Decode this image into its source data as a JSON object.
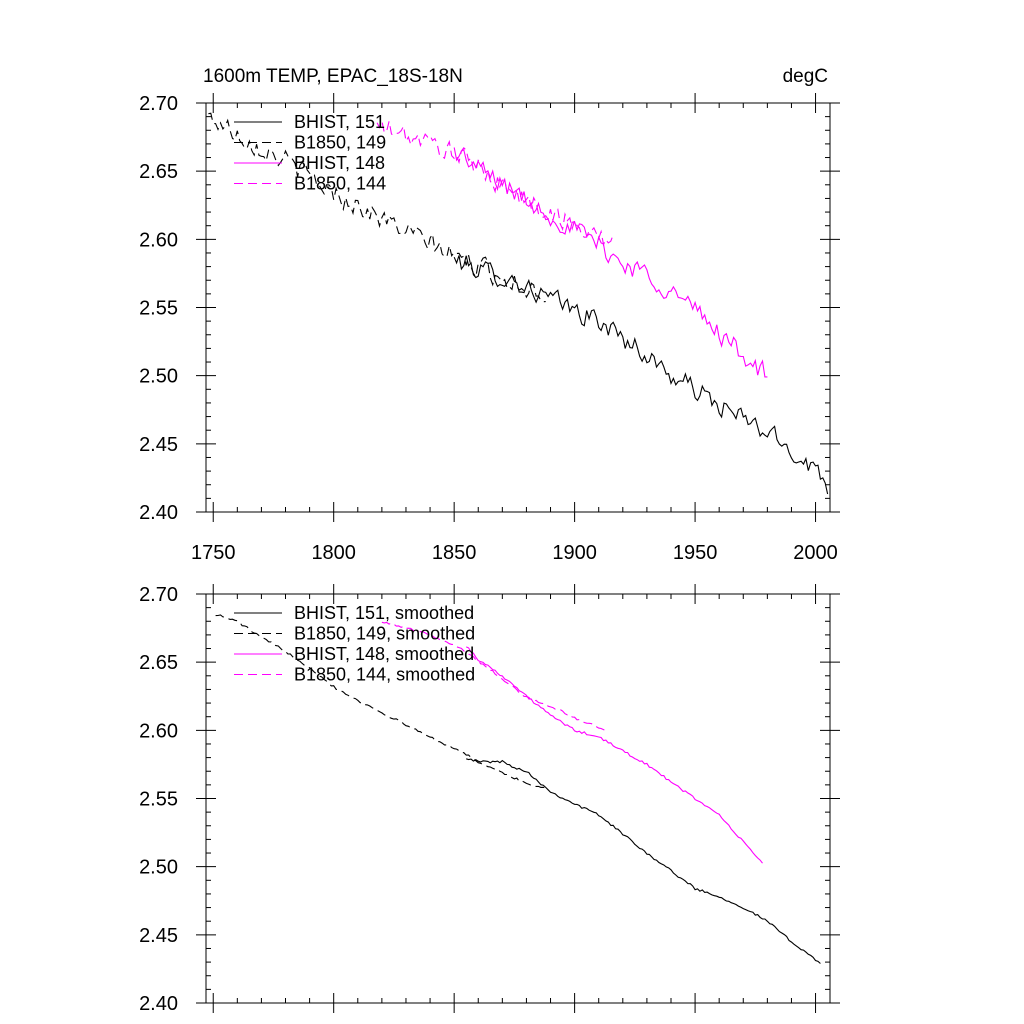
{
  "chart_data": [
    {
      "type": "line",
      "title": "1600m TEMP, EPAC_18S-18N",
      "units": "degC",
      "xlim": [
        1747,
        2006
      ],
      "ylim": [
        2.4,
        2.7
      ],
      "xticks": [
        1750,
        1800,
        1850,
        1900,
        1950,
        2000
      ],
      "yticks": [
        2.4,
        2.45,
        2.5,
        2.55,
        2.6,
        2.65,
        2.7
      ],
      "xtick_labels": [
        "1750",
        "1800",
        "1850",
        "1900",
        "1950",
        "2000"
      ],
      "ytick_labels": [
        "2.40",
        "2.45",
        "2.50",
        "2.55",
        "2.60",
        "2.65",
        "2.70"
      ],
      "grid": false,
      "legend_position": "top-left",
      "noisy": true,
      "series": [
        {
          "name": "BHIST, 151",
          "color": "#000000",
          "dash": "solid",
          "x": [
            1850,
            1860,
            1870,
            1880,
            1890,
            1900,
            1910,
            1920,
            1930,
            1940,
            1950,
            1960,
            1970,
            1980,
            1990,
            2000,
            2005
          ],
          "y": [
            2.585,
            2.578,
            2.573,
            2.565,
            2.556,
            2.548,
            2.54,
            2.528,
            2.515,
            2.5,
            2.49,
            2.478,
            2.468,
            2.458,
            2.445,
            2.432,
            2.42
          ]
        },
        {
          "name": "B1850, 149",
          "color": "#000000",
          "dash": "dashed",
          "x": [
            1748,
            1760,
            1770,
            1780,
            1790,
            1800,
            1810,
            1820,
            1830,
            1840,
            1850,
            1860,
            1870,
            1880,
            1888
          ],
          "y": [
            2.69,
            2.678,
            2.667,
            2.658,
            2.646,
            2.634,
            2.625,
            2.615,
            2.606,
            2.597,
            2.588,
            2.58,
            2.572,
            2.565,
            2.56
          ]
        },
        {
          "name": "BHIST, 148",
          "color": "#ff00ff",
          "dash": "solid",
          "x": [
            1850,
            1860,
            1870,
            1880,
            1890,
            1900,
            1910,
            1920,
            1930,
            1940,
            1950,
            1960,
            1970,
            1980
          ],
          "y": [
            2.665,
            2.652,
            2.641,
            2.628,
            2.618,
            2.607,
            2.596,
            2.582,
            2.575,
            2.562,
            2.548,
            2.532,
            2.515,
            2.5
          ]
        },
        {
          "name": "B1850, 144",
          "color": "#ff00ff",
          "dash": "dashed",
          "x": [
            1818,
            1830,
            1840,
            1850,
            1860,
            1870,
            1880,
            1890,
            1900,
            1910,
            1916
          ],
          "y": [
            2.683,
            2.676,
            2.67,
            2.664,
            2.652,
            2.64,
            2.628,
            2.62,
            2.61,
            2.603,
            2.597
          ]
        }
      ]
    },
    {
      "type": "line",
      "xlim": [
        1747,
        2006
      ],
      "ylim": [
        2.4,
        2.7
      ],
      "xticks": [
        1750,
        1800,
        1850,
        1900,
        1950,
        2000
      ],
      "yticks": [
        2.4,
        2.45,
        2.5,
        2.55,
        2.6,
        2.65,
        2.7
      ],
      "ytick_labels": [
        "2.40",
        "2.45",
        "2.50",
        "2.55",
        "2.60",
        "2.65",
        "2.70"
      ],
      "grid": false,
      "legend_position": "top-left",
      "noisy": false,
      "series": [
        {
          "name": "BHIST, 151, smoothed",
          "color": "#000000",
          "dash": "solid",
          "x": [
            1855,
            1860,
            1870,
            1875,
            1880,
            1890,
            1900,
            1910,
            1920,
            1930,
            1940,
            1950,
            1960,
            1970,
            1980,
            1990,
            2000,
            2002
          ],
          "y": [
            2.58,
            2.577,
            2.577,
            2.573,
            2.57,
            2.555,
            2.546,
            2.538,
            2.524,
            2.51,
            2.497,
            2.484,
            2.478,
            2.47,
            2.46,
            2.445,
            2.432,
            2.429
          ]
        },
        {
          "name": "B1850, 149, smoothed",
          "color": "#000000",
          "dash": "dashed",
          "x": [
            1751,
            1760,
            1770,
            1780,
            1790,
            1800,
            1810,
            1820,
            1830,
            1840,
            1850,
            1860,
            1870,
            1880,
            1888
          ],
          "y": [
            2.685,
            2.68,
            2.668,
            2.658,
            2.646,
            2.632,
            2.622,
            2.613,
            2.604,
            2.595,
            2.587,
            2.577,
            2.569,
            2.561,
            2.557
          ]
        },
        {
          "name": "BHIST, 148, smoothed",
          "color": "#ff00ff",
          "dash": "solid",
          "x": [
            1855,
            1860,
            1870,
            1880,
            1890,
            1900,
            1910,
            1920,
            1930,
            1940,
            1950,
            1960,
            1970,
            1978
          ],
          "y": [
            2.662,
            2.652,
            2.64,
            2.625,
            2.611,
            2.6,
            2.595,
            2.585,
            2.575,
            2.562,
            2.55,
            2.538,
            2.518,
            2.503
          ]
        },
        {
          "name": "B1850, 144, smoothed",
          "color": "#ff00ff",
          "dash": "dashed",
          "x": [
            1820,
            1830,
            1840,
            1850,
            1860,
            1870,
            1880,
            1890,
            1900,
            1910,
            1913
          ],
          "y": [
            2.68,
            2.675,
            2.67,
            2.663,
            2.651,
            2.638,
            2.624,
            2.618,
            2.609,
            2.602,
            2.6
          ]
        }
      ]
    }
  ]
}
